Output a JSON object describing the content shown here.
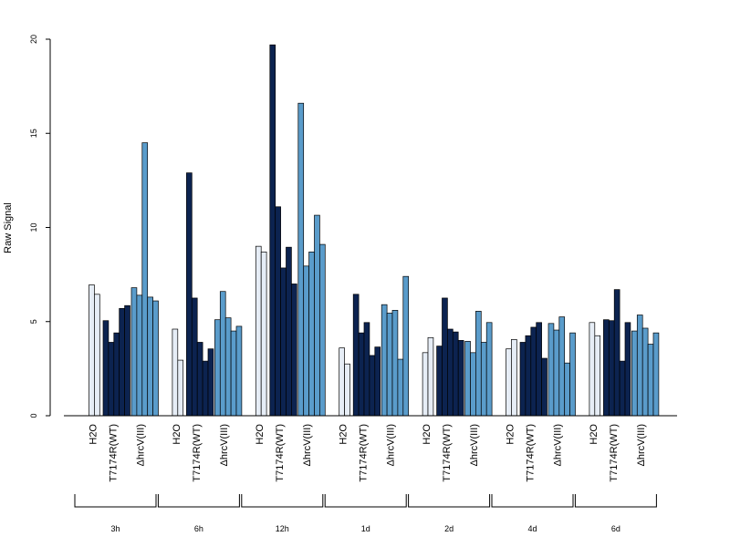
{
  "chart_data": {
    "type": "bar",
    "ylabel": "Raw Signal",
    "ylim": [
      0,
      20
    ],
    "yticks": [
      "0",
      "5",
      "10",
      "15",
      "20"
    ],
    "grid": false,
    "legend": "none",
    "categories": [
      "H2O",
      "T7174R(WT)",
      "ΔhrcV(III)"
    ],
    "colors": {
      "H2O": "#e6edf6",
      "T7174R(WT)": "#0c2350",
      "ΔhrcV(III)": "#5a9ccb"
    },
    "timepoints": [
      {
        "label": "3h",
        "H2O": [
          6.95,
          6.45
        ],
        "T7174R(WT)": [
          5.05,
          3.9,
          4.4,
          5.7,
          5.85
        ],
        "ΔhrcV(III)": [
          6.8,
          6.4,
          14.5,
          6.3,
          6.1
        ]
      },
      {
        "label": "6h",
        "H2O": [
          4.6,
          2.95
        ],
        "T7174R(WT)": [
          12.9,
          6.25,
          3.9,
          2.9,
          3.55
        ],
        "ΔhrcV(III)": [
          5.1,
          6.6,
          5.2,
          4.5,
          4.75
        ]
      },
      {
        "label": "12h",
        "H2O": [
          9.0,
          8.7
        ],
        "T7174R(WT)": [
          19.7,
          11.1,
          7.85,
          8.95,
          7.0
        ],
        "ΔhrcV(III)": [
          16.6,
          7.95,
          8.7,
          10.65,
          9.1
        ]
      },
      {
        "label": "1d",
        "H2O": [
          3.6,
          2.75
        ],
        "T7174R(WT)": [
          6.45,
          4.4,
          4.95,
          3.2,
          3.65
        ],
        "ΔhrcV(III)": [
          5.9,
          5.45,
          5.6,
          3.0,
          7.4
        ]
      },
      {
        "label": "2d",
        "H2O": [
          3.35,
          4.15
        ],
        "T7174R(WT)": [
          3.7,
          6.25,
          4.6,
          4.45,
          4.0
        ],
        "ΔhrcV(III)": [
          3.95,
          3.35,
          5.55,
          3.9,
          4.95
        ]
      },
      {
        "label": "4d",
        "H2O": [
          3.55,
          4.05
        ],
        "T7174R(WT)": [
          3.9,
          4.25,
          4.7,
          4.95,
          3.05
        ],
        "ΔhrcV(III)": [
          4.9,
          4.55,
          5.25,
          2.8,
          4.4
        ]
      },
      {
        "label": "6d",
        "H2O": [
          4.95,
          4.25
        ],
        "T7174R(WT)": [
          5.1,
          5.05,
          6.7,
          2.9,
          4.95
        ],
        "ΔhrcV(III)": [
          4.5,
          5.35,
          4.65,
          3.8,
          4.4
        ]
      }
    ]
  }
}
